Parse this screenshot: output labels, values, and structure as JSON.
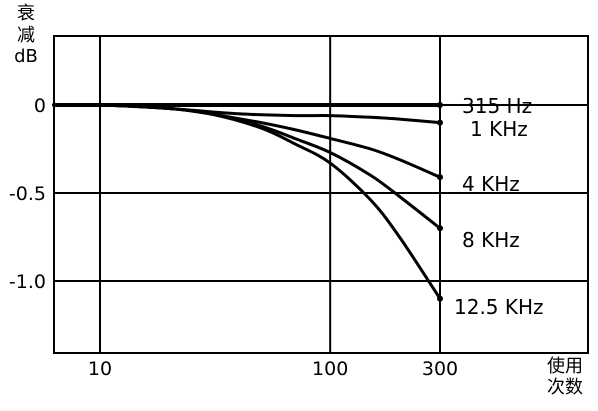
{
  "chart_data": {
    "type": "line",
    "title": "",
    "ylabel": "衰减dB",
    "xlabel": "使用次数",
    "x_scale": "log",
    "xlim": [
      5,
      300
    ],
    "ylim": [
      -1.25,
      0.05
    ],
    "x_ticks": [
      10,
      100,
      300
    ],
    "x_tick_labels": [
      "10",
      "100",
      "300"
    ],
    "y_ticks": [
      0,
      -0.5,
      -1.0
    ],
    "y_tick_labels": [
      "0",
      "-0.5",
      "-1.0"
    ],
    "grid": true,
    "series": [
      {
        "name": "315 Hz",
        "x": [
          5,
          10,
          20,
          40,
          70,
          100,
          150,
          200,
          300
        ],
        "y": [
          0,
          0,
          0,
          0,
          0,
          0,
          0,
          0,
          0
        ]
      },
      {
        "name": "1 KHz",
        "x": [
          5,
          10,
          20,
          40,
          70,
          100,
          150,
          200,
          300
        ],
        "y": [
          0,
          0,
          -0.02,
          -0.05,
          -0.06,
          -0.06,
          -0.07,
          -0.08,
          -0.1
        ]
      },
      {
        "name": "4 KHz",
        "x": [
          5,
          10,
          20,
          30,
          50,
          70,
          100,
          150,
          200,
          300
        ],
        "y": [
          0,
          0,
          -0.02,
          -0.05,
          -0.1,
          -0.14,
          -0.19,
          -0.25,
          -0.31,
          -0.41
        ]
      },
      {
        "name": "8 KHz",
        "x": [
          5,
          10,
          20,
          30,
          50,
          70,
          100,
          150,
          200,
          300
        ],
        "y": [
          0,
          0,
          -0.02,
          -0.05,
          -0.12,
          -0.19,
          -0.27,
          -0.4,
          -0.52,
          -0.7
        ]
      },
      {
        "name": "12.5 KHz",
        "x": [
          5,
          10,
          20,
          30,
          50,
          70,
          100,
          150,
          200,
          300
        ],
        "y": [
          0,
          0,
          -0.02,
          -0.05,
          -0.13,
          -0.22,
          -0.33,
          -0.54,
          -0.75,
          -1.1
        ]
      }
    ]
  }
}
